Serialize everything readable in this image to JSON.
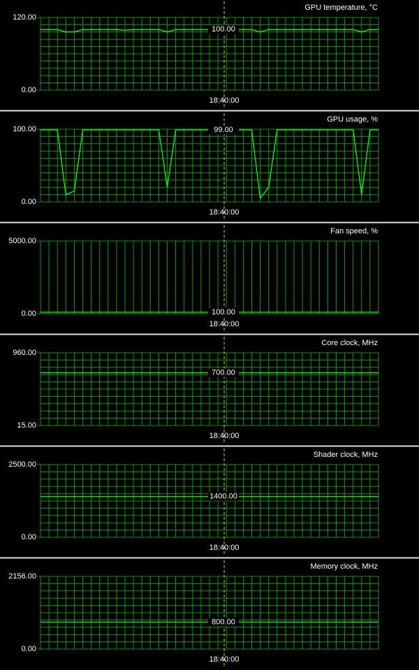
{
  "panels": [
    {
      "title": "GPU temperature, °C",
      "ylim": [
        0,
        120
      ],
      "yticks": [
        {
          "value": 0,
          "label": "0.00"
        },
        {
          "value": 120,
          "label": "120.00"
        }
      ],
      "current": {
        "value": 100,
        "label": "100.00"
      },
      "time": "18:40:00",
      "hgrid": true,
      "values": [
        100,
        100,
        100,
        96,
        96,
        100,
        100,
        100,
        100,
        100,
        99,
        100,
        100,
        100,
        100,
        96,
        100,
        100,
        100,
        100,
        100,
        100,
        100,
        100,
        100,
        100,
        96,
        100,
        100,
        100,
        100,
        100,
        100,
        100,
        100,
        100,
        100,
        100,
        96,
        100,
        100
      ]
    },
    {
      "title": "GPU usage, %",
      "ylim": [
        0,
        100
      ],
      "yticks": [
        {
          "value": 0,
          "label": "0.00"
        },
        {
          "value": 100,
          "label": "100.00"
        }
      ],
      "current": {
        "value": 99,
        "label": "99.00"
      },
      "time": "18:40:00",
      "hgrid": true,
      "values": [
        99,
        99,
        99,
        10,
        15,
        99,
        99,
        99,
        99,
        99,
        99,
        99,
        99,
        99,
        99,
        20,
        99,
        99,
        99,
        99,
        99,
        99,
        99,
        99,
        99,
        99,
        5,
        20,
        99,
        99,
        99,
        99,
        99,
        99,
        99,
        99,
        99,
        99,
        10,
        99,
        99
      ]
    },
    {
      "title": "Fan speed, %",
      "ylim": [
        0,
        5000
      ],
      "yticks": [
        {
          "value": 0,
          "label": "0.00"
        },
        {
          "value": 5000,
          "label": "5000.00"
        }
      ],
      "current": {
        "value": 100,
        "label": "100.00"
      },
      "time": "18:40:00",
      "hgrid": false,
      "values": [
        100,
        100
      ]
    },
    {
      "title": "Core clock, MHz",
      "ylim": [
        15,
        960
      ],
      "yticks": [
        {
          "value": 15,
          "label": "15.00"
        },
        {
          "value": 960,
          "label": "960.00"
        }
      ],
      "current": {
        "value": 700,
        "label": "700.00"
      },
      "time": "18:40:00",
      "hgrid": true,
      "values": [
        700,
        700
      ]
    },
    {
      "title": "Shader clock, MHz",
      "ylim": [
        0,
        2500
      ],
      "yticks": [
        {
          "value": 0,
          "label": "0.00"
        },
        {
          "value": 2500,
          "label": "2500.00"
        }
      ],
      "current": {
        "value": 1400,
        "label": "1400.00"
      },
      "time": "18:40:00",
      "hgrid": true,
      "values": [
        1400,
        1400
      ]
    },
    {
      "title": "Memory clock, MHz",
      "ylim": [
        0,
        2156
      ],
      "yticks": [
        {
          "value": 0,
          "label": "0.00"
        },
        {
          "value": 2156,
          "label": "2156.00"
        }
      ],
      "current": {
        "value": 800,
        "label": "800.00"
      },
      "time": "18:40:00",
      "hgrid": true,
      "values": [
        800,
        800
      ]
    }
  ]
}
